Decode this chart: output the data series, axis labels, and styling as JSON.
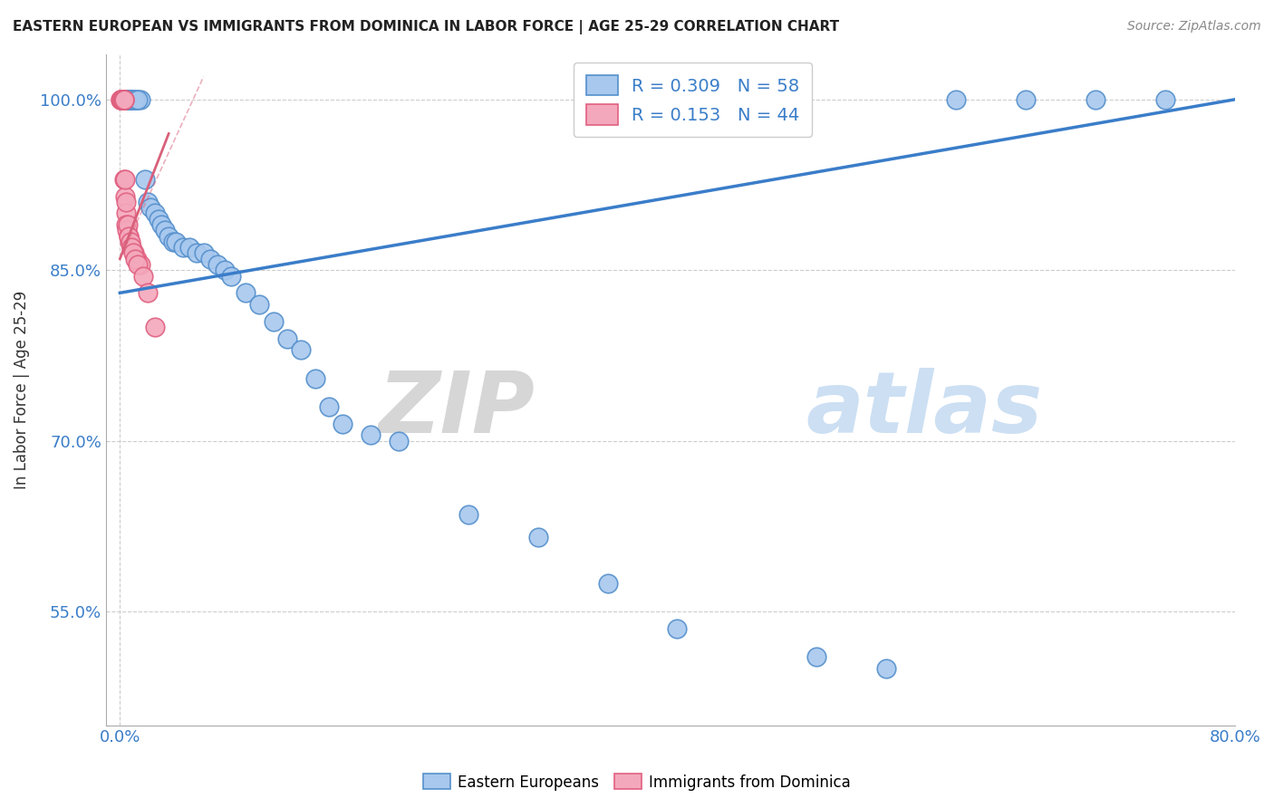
{
  "title": "EASTERN EUROPEAN VS IMMIGRANTS FROM DOMINICA IN LABOR FORCE | AGE 25-29 CORRELATION CHART",
  "source": "Source: ZipAtlas.com",
  "ylabel": "In Labor Force | Age 25-29",
  "xlim": [
    -1.0,
    80.0
  ],
  "ylim": [
    45.0,
    104.0
  ],
  "x_ticks": [
    0.0,
    80.0
  ],
  "x_tick_labels": [
    "0.0%",
    "80.0%"
  ],
  "y_ticks": [
    55.0,
    70.0,
    85.0,
    100.0
  ],
  "y_tick_labels": [
    "55.0%",
    "70.0%",
    "85.0%",
    "100.0%"
  ],
  "blue_R": 0.309,
  "blue_N": 58,
  "pink_R": 0.153,
  "pink_N": 44,
  "blue_color": "#A8C8EE",
  "pink_color": "#F4A8BC",
  "blue_edge_color": "#5590CC",
  "pink_edge_color": "#E06080",
  "blue_line_color": "#3A7DC9",
  "pink_line_color": "#D9607A",
  "legend_label_blue": "Eastern Europeans",
  "legend_label_pink": "Immigrants from Dominica",
  "watermark_zip": "ZIP",
  "watermark_atlas": "atlas",
  "background_color": "#FFFFFF",
  "blue_x": [
    0.3,
    0.4,
    0.5,
    0.6,
    0.7,
    0.8,
    1.0,
    1.2,
    1.5,
    1.8,
    2.0,
    2.2,
    2.5,
    2.8,
    3.0,
    3.2,
    3.5,
    3.8,
    4.0,
    4.5,
    5.0,
    5.5,
    6.0,
    6.5,
    7.0,
    7.5,
    8.0,
    9.0,
    10.0,
    11.0,
    12.0,
    13.0,
    14.0,
    15.0,
    16.0,
    18.0,
    20.0,
    25.0,
    30.0,
    35.0,
    40.0,
    50.0,
    55.0,
    60.0,
    65.0,
    70.0,
    75.0,
    0.15,
    0.2,
    0.25,
    0.35,
    0.45,
    0.55,
    0.65,
    0.75,
    0.9,
    1.1,
    1.3
  ],
  "blue_y": [
    100.0,
    100.0,
    100.0,
    100.0,
    100.0,
    100.0,
    100.0,
    100.0,
    100.0,
    93.0,
    91.0,
    90.5,
    90.0,
    89.5,
    89.0,
    88.5,
    88.0,
    87.5,
    87.5,
    87.0,
    87.0,
    86.5,
    86.5,
    86.0,
    85.5,
    85.0,
    84.5,
    83.0,
    82.0,
    80.5,
    79.0,
    78.0,
    75.5,
    73.0,
    71.5,
    70.5,
    70.0,
    63.5,
    61.5,
    57.5,
    53.5,
    51.0,
    50.0,
    100.0,
    100.0,
    100.0,
    100.0,
    100.0,
    100.0,
    100.0,
    100.0,
    100.0,
    100.0,
    100.0,
    100.0,
    100.0,
    100.0,
    100.0
  ],
  "pink_x": [
    0.05,
    0.07,
    0.09,
    0.1,
    0.12,
    0.14,
    0.16,
    0.18,
    0.2,
    0.22,
    0.25,
    0.28,
    0.3,
    0.35,
    0.4,
    0.45,
    0.5,
    0.6,
    0.7,
    0.8,
    1.0,
    1.2,
    1.5,
    0.08,
    0.11,
    0.13,
    0.15,
    0.17,
    0.19,
    0.23,
    0.27,
    0.32,
    0.38,
    0.42,
    0.55,
    0.65,
    0.75,
    0.85,
    0.95,
    1.1,
    1.3,
    1.7,
    2.0,
    2.5
  ],
  "pink_y": [
    100.0,
    100.0,
    100.0,
    100.0,
    100.0,
    100.0,
    100.0,
    100.0,
    100.0,
    100.0,
    100.0,
    100.0,
    93.0,
    91.5,
    90.0,
    89.0,
    88.5,
    88.0,
    87.5,
    87.0,
    86.5,
    86.0,
    85.5,
    100.0,
    100.0,
    100.0,
    100.0,
    100.0,
    100.0,
    100.0,
    100.0,
    100.0,
    93.0,
    91.0,
    89.0,
    88.0,
    87.5,
    87.0,
    86.5,
    86.0,
    85.5,
    84.5,
    83.0,
    80.0
  ],
  "blue_line_x0": 0.0,
  "blue_line_y0": 83.0,
  "blue_line_x1": 80.0,
  "blue_line_y1": 100.0,
  "pink_line_x0": 0.0,
  "pink_line_y0": 86.0,
  "pink_line_x1": 3.5,
  "pink_line_y1": 97.0,
  "pink_dash_x0": 0.0,
  "pink_dash_y0": 86.0,
  "pink_dash_x1": 6.0,
  "pink_dash_y1": 102.0
}
